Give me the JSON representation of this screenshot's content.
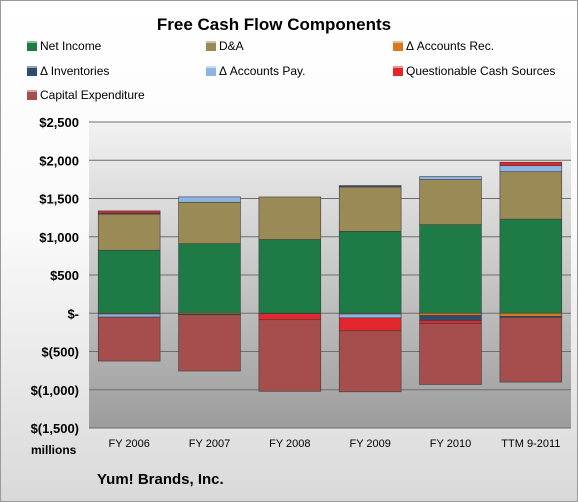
{
  "chart_data": {
    "type": "bar",
    "stacked": true,
    "title": "Free Cash Flow Components",
    "categories": [
      "FY 2006",
      "FY 2007",
      "FY 2008",
      "FY 2009",
      "FY 2010",
      "TTM 9-2011"
    ],
    "yticks": [
      "$2,500",
      "$2,000",
      "$1,500",
      "$1,000",
      "$500",
      "$-",
      "$(500)",
      "$(1,000)",
      "$(1,500)"
    ],
    "ylim": [
      -1500,
      2500
    ],
    "ylabel": "millions",
    "legend_placement": "top",
    "grid": true,
    "series": [
      {
        "name": "Net Income",
        "color": "#1e7b45",
        "values": [
          824,
          909,
          964,
          1071,
          1158,
          1230
        ]
      },
      {
        "name": "D&A",
        "color": "#9a8a55",
        "values": [
          479,
          542,
          556,
          580,
          589,
          620
        ]
      },
      {
        "name": "Δ Accounts Rec.",
        "color": "#d9791f",
        "values": [
          -10,
          -15,
          -5,
          -10,
          -30,
          -40
        ]
      },
      {
        "name": "Δ Inventories",
        "color": "#2e4d6e",
        "values": [
          5,
          -5,
          0,
          18,
          -65,
          -15
        ]
      },
      {
        "name": "Δ Accounts Pay.",
        "color": "#8eb4e3",
        "values": [
          -40,
          70,
          0,
          -50,
          40,
          80
        ]
      },
      {
        "name": "Questionable Cash Sources",
        "color": "#e3262b",
        "values": [
          30,
          0,
          -80,
          -170,
          -40,
          45
        ]
      },
      {
        "name": "Capital Expenditure",
        "color": "#a64d4d",
        "values": [
          -575,
          -735,
          -935,
          -797,
          -796,
          -845
        ]
      }
    ]
  },
  "company": "Yum! Brands, Inc.",
  "units_label": "millions"
}
